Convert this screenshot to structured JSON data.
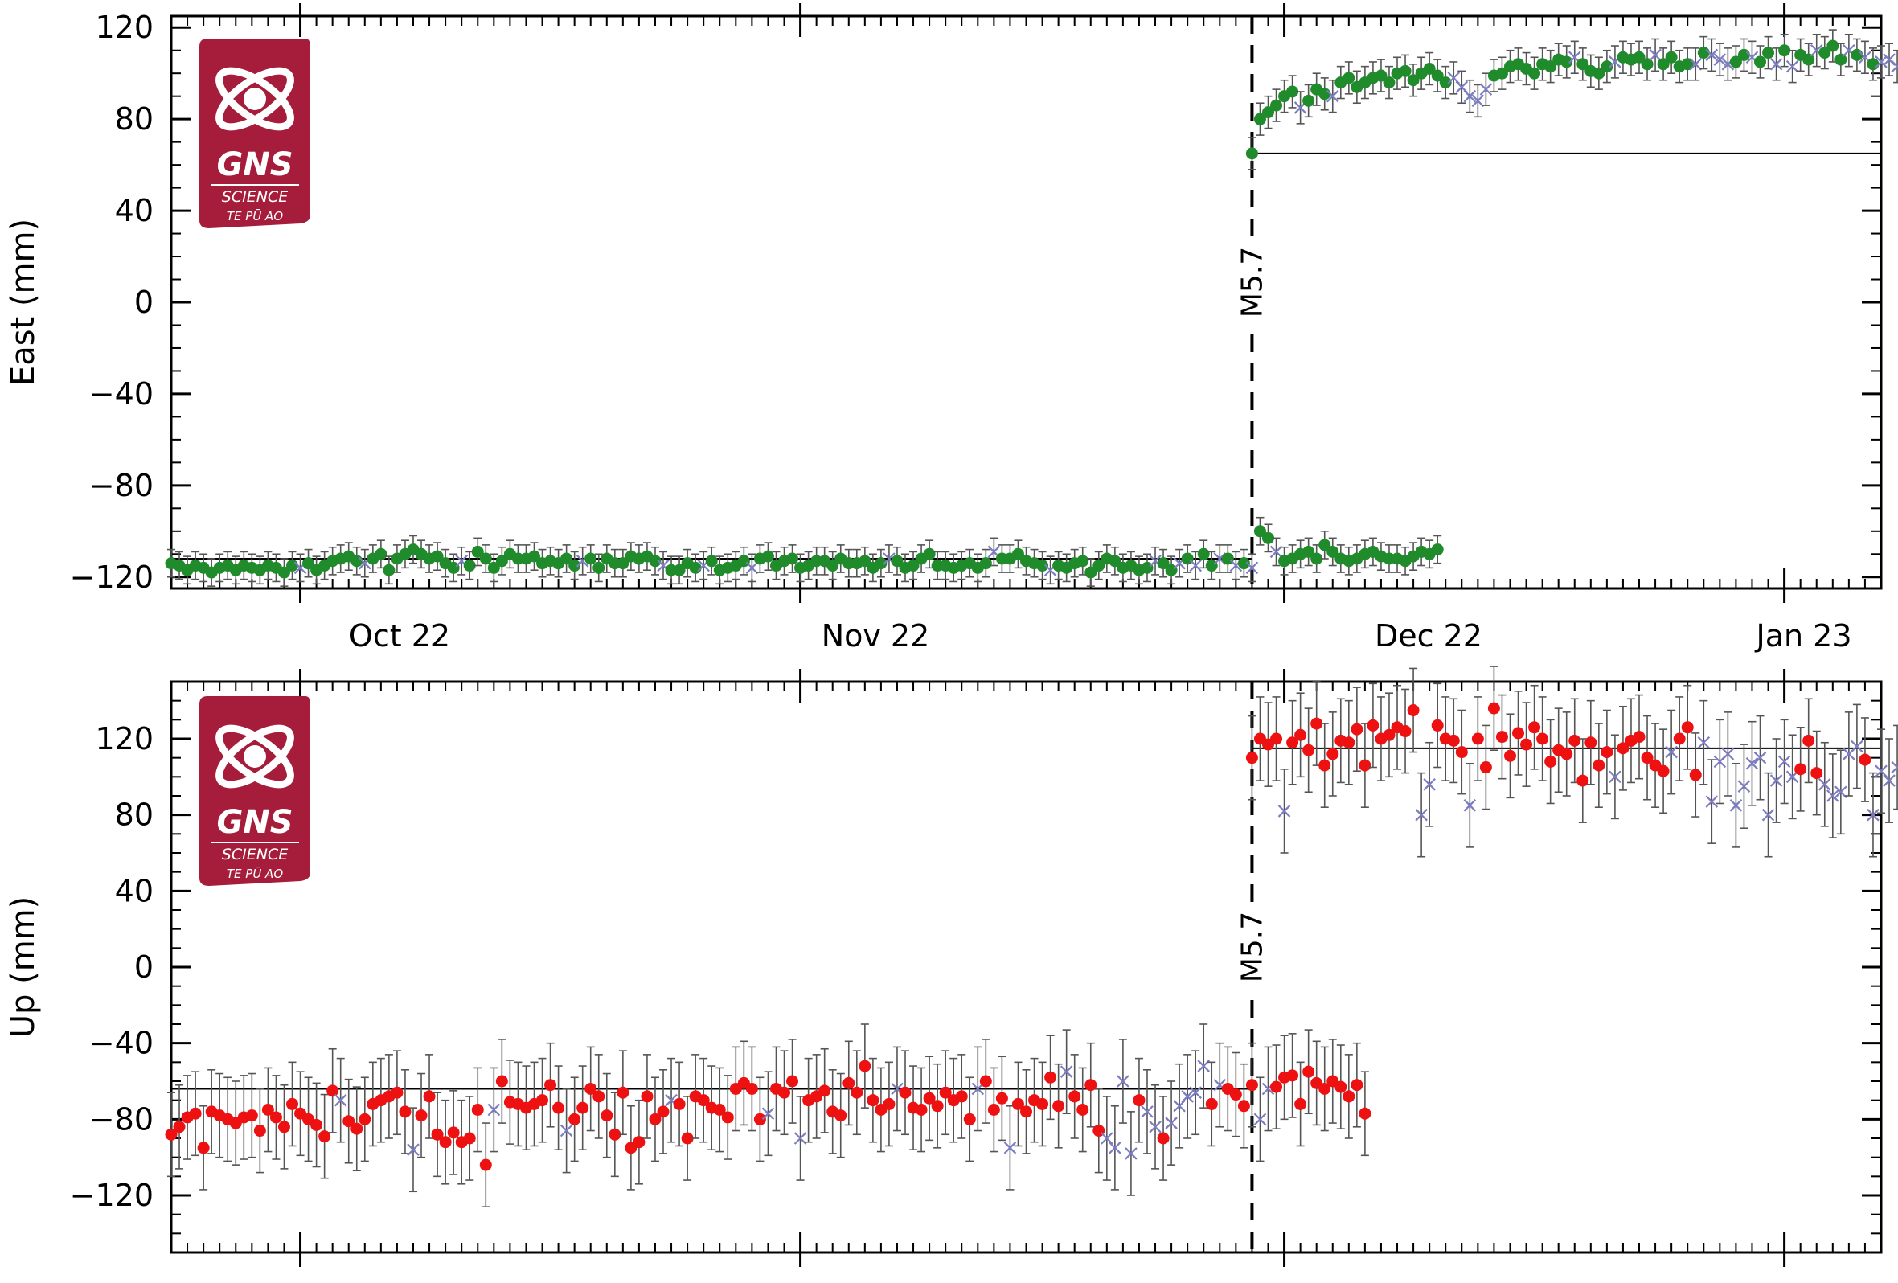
{
  "logo": {
    "name": "GNS",
    "line2": "SCIENCE",
    "line3": "TE PŪ AO",
    "color": "#a51d3a"
  },
  "colors": {
    "east_points": "#1f8b2b",
    "up_points": "#ee1111",
    "rejected_points": "#7c7cc0",
    "error_bars": "#555555",
    "axis": "#000000"
  },
  "event": {
    "label": "M5.7",
    "date": "2022-11-29"
  },
  "month_labels": [
    "Oct 22",
    "Nov 22",
    "Dec 22",
    "Jan 23"
  ],
  "chart_data": [
    {
      "type": "scatter",
      "panel": "east",
      "ylabel": "East (mm)",
      "ylim": [
        -125,
        125
      ],
      "yticks": [
        -120,
        -80,
        -40,
        0,
        40,
        80,
        120
      ],
      "xlim": [
        "2022-09-23",
        "2023-01-07"
      ],
      "event_date": "2022-11-29",
      "reference_lines": [
        {
          "from": "2022-09-23",
          "to": "2022-11-29",
          "y": -112
        },
        {
          "from": "2022-11-29",
          "to": "2023-01-07",
          "y": 65
        }
      ],
      "series_rules": [
        {
          "name": "accepted",
          "marker": "circle",
          "color": "#1f8b2b"
        },
        {
          "name": "rejected",
          "marker": "x",
          "color": "#7c7cc0"
        }
      ],
      "pre": {
        "start": "2022-09-23",
        "step_days": 0.5,
        "err": 6,
        "values": [
          -114,
          -115,
          -117,
          -115,
          -116,
          -118,
          -116,
          -115,
          -117,
          -115,
          -116,
          -117,
          -115,
          -116,
          -118,
          -115,
          -116,
          -114,
          -117,
          -115,
          -113,
          -112,
          -111,
          -113,
          -114,
          -112,
          -110,
          -117,
          -112,
          -110,
          -108,
          -110,
          -112,
          -111,
          -114,
          -116,
          -113,
          -115,
          -109,
          -112,
          -116,
          -113,
          -110,
          -112,
          -112,
          -111,
          -114,
          -113,
          -114,
          -112,
          -115,
          -113,
          -112,
          -116,
          -112,
          -114,
          -114,
          -111,
          -112,
          -111,
          -113,
          -115,
          -117,
          -117,
          -114,
          -116,
          -115,
          -113,
          -117,
          -116,
          -115,
          -113,
          -116,
          -112,
          -111,
          -115,
          -113,
          -112,
          -116,
          -115,
          -113,
          -113,
          -115,
          -112,
          -114,
          -114,
          -113,
          -116,
          -114,
          -112,
          -113,
          -116,
          -115,
          -112,
          -110,
          -115,
          -115,
          -116,
          -115,
          -114,
          -116,
          -114,
          -109,
          -112,
          -112,
          -110,
          -113,
          -114,
          -115,
          -117,
          -115,
          -116,
          -114,
          -113,
          -118,
          -115,
          -112,
          -113,
          -116,
          -115,
          -117,
          -116,
          -113,
          -114,
          -117,
          -114,
          -112,
          -115,
          -110,
          -115,
          -112,
          -112,
          -115,
          -114,
          -116,
          -100,
          -103,
          -109,
          -113,
          -112,
          -110,
          -109,
          -112,
          -106,
          -109,
          -112,
          -113,
          -112,
          -110,
          -109,
          -111,
          -112,
          -112,
          -113,
          -111,
          -109,
          -110,
          -108
        ],
        "rejected_idx": [
          16,
          24,
          36,
          51,
          61,
          66,
          72,
          89,
          102,
          109,
          122,
          125,
          127,
          130,
          132,
          134,
          137
        ]
      },
      "post": {
        "start": "2022-11-29",
        "step_days": 0.5,
        "err": 7,
        "values": [
          65,
          80,
          83,
          86,
          90,
          92,
          85,
          88,
          93,
          91,
          90,
          96,
          98,
          94,
          96,
          98,
          99,
          96,
          100,
          101,
          97,
          100,
          102,
          99,
          96,
          98,
          94,
          90,
          88,
          93,
          99,
          100,
          103,
          104,
          102,
          100,
          104,
          103,
          106,
          105,
          107,
          104,
          101,
          100,
          103,
          105,
          107,
          106,
          107,
          104,
          108,
          104,
          107,
          103,
          104,
          104,
          109,
          108,
          106,
          104,
          105,
          108,
          107,
          105,
          109,
          104,
          110,
          103,
          108,
          106,
          110,
          109,
          112,
          106,
          110,
          108,
          107,
          104,
          105,
          106,
          103,
          104,
          107,
          108,
          106,
          104,
          103,
          106,
          105,
          112,
          104,
          106,
          110,
          113,
          106,
          110,
          112,
          107,
          104,
          108,
          106,
          105,
          108,
          110,
          107,
          104,
          101,
          98,
          104,
          109,
          105,
          111,
          106,
          108,
          111,
          113,
          116,
          118
        ],
        "rejected_idx": [
          6,
          10,
          25,
          26,
          27,
          28,
          29,
          40,
          45,
          50,
          55,
          57,
          58,
          59,
          62,
          65,
          67,
          70,
          74,
          76,
          78,
          79,
          80,
          81,
          86,
          87,
          88,
          93,
          96,
          98,
          99,
          100,
          101,
          102,
          104,
          105,
          106,
          107,
          108,
          109,
          111,
          112,
          114,
          117
        ]
      }
    },
    {
      "type": "scatter",
      "panel": "up",
      "ylabel": "Up (mm)",
      "ylim": [
        -150,
        150
      ],
      "yticks": [
        -120,
        -80,
        -40,
        0,
        40,
        80,
        120
      ],
      "xlim": [
        "2022-09-23",
        "2023-01-07"
      ],
      "event_date": "2022-11-29",
      "reference_lines": [
        {
          "from": "2022-09-23",
          "to": "2022-11-29",
          "y": -64
        },
        {
          "from": "2022-11-29",
          "to": "2023-01-07",
          "y": 115
        }
      ],
      "series_rules": [
        {
          "name": "accepted",
          "marker": "circle",
          "color": "#ee1111"
        },
        {
          "name": "rejected",
          "marker": "x",
          "color": "#7c7cc0"
        }
      ],
      "pre": {
        "start": "2022-09-23",
        "step_days": 0.5,
        "err": 22,
        "values": [
          -88,
          -84,
          -79,
          -77,
          -95,
          -76,
          -78,
          -80,
          -82,
          -79,
          -78,
          -86,
          -75,
          -79,
          -84,
          -72,
          -77,
          -80,
          -83,
          -89,
          -65,
          -70,
          -81,
          -85,
          -80,
          -72,
          -70,
          -68,
          -66,
          -76,
          -96,
          -78,
          -68,
          -88,
          -92,
          -87,
          -92,
          -90,
          -75,
          -104,
          -75,
          -60,
          -71,
          -72,
          -74,
          -72,
          -70,
          -62,
          -74,
          -86,
          -80,
          -74,
          -64,
          -68,
          -78,
          -88,
          -66,
          -95,
          -92,
          -68,
          -80,
          -76,
          -70,
          -72,
          -90,
          -68,
          -70,
          -74,
          -75,
          -79,
          -64,
          -61,
          -64,
          -80,
          -77,
          -64,
          -66,
          -60,
          -90,
          -70,
          -68,
          -65,
          -76,
          -78,
          -61,
          -66,
          -52,
          -70,
          -75,
          -72,
          -64,
          -66,
          -74,
          -75,
          -69,
          -73,
          -66,
          -70,
          -68,
          -80,
          -64,
          -60,
          -75,
          -69,
          -95,
          -72,
          -76,
          -70,
          -72,
          -58,
          -73,
          -55,
          -68,
          -75,
          -62,
          -86,
          -90,
          -95,
          -60,
          -98,
          -70,
          -76,
          -84,
          -90,
          -82,
          -73,
          -68,
          -66,
          -52,
          -72,
          -62,
          -64,
          -67,
          -73,
          -62,
          -80,
          -64,
          -63,
          -58,
          -57,
          -72,
          -55,
          -61,
          -64,
          -60,
          -63,
          -68,
          -62,
          -77
        ],
        "rejected_idx": [
          21,
          30,
          40,
          49,
          62,
          74,
          78,
          90,
          100,
          104,
          111,
          116,
          117,
          118,
          119,
          121,
          122,
          124,
          125,
          126,
          127,
          128,
          130,
          135,
          136
        ]
      },
      "post": {
        "start": "2022-11-29",
        "step_days": 0.5,
        "err": 22,
        "values": [
          110,
          120,
          117,
          120,
          82,
          118,
          122,
          114,
          128,
          106,
          112,
          119,
          118,
          125,
          106,
          127,
          120,
          122,
          126,
          124,
          135,
          80,
          96,
          127,
          120,
          119,
          113,
          85,
          120,
          105,
          136,
          121,
          111,
          123,
          117,
          126,
          120,
          108,
          114,
          112,
          119,
          98,
          118,
          106,
          113,
          100,
          115,
          119,
          121,
          110,
          106,
          103,
          113,
          120,
          126,
          101,
          118,
          87,
          108,
          112,
          85,
          95,
          107,
          110,
          80,
          98,
          108,
          100,
          104,
          119,
          102,
          96,
          90,
          92,
          112,
          116,
          109,
          80,
          103,
          98,
          105,
          121,
          108,
          97,
          112,
          90,
          88,
          100,
          119,
          86,
          91,
          104,
          110,
          92,
          100,
          129,
          133,
          96,
          103,
          117,
          110,
          132,
          104,
          114,
          104,
          123,
          108,
          113,
          102,
          97,
          90,
          93,
          104,
          118,
          114,
          108,
          88
        ],
        "rejected_idx": [
          4,
          21,
          22,
          27,
          45,
          52,
          56,
          57,
          58,
          59,
          60,
          61,
          62,
          63,
          64,
          65,
          66,
          67,
          71,
          72,
          73,
          74,
          75,
          77,
          78,
          79,
          80,
          85,
          86,
          87,
          90,
          91,
          93,
          94,
          98,
          103,
          104,
          107,
          108,
          109,
          110,
          111,
          112,
          116
        ]
      }
    }
  ]
}
